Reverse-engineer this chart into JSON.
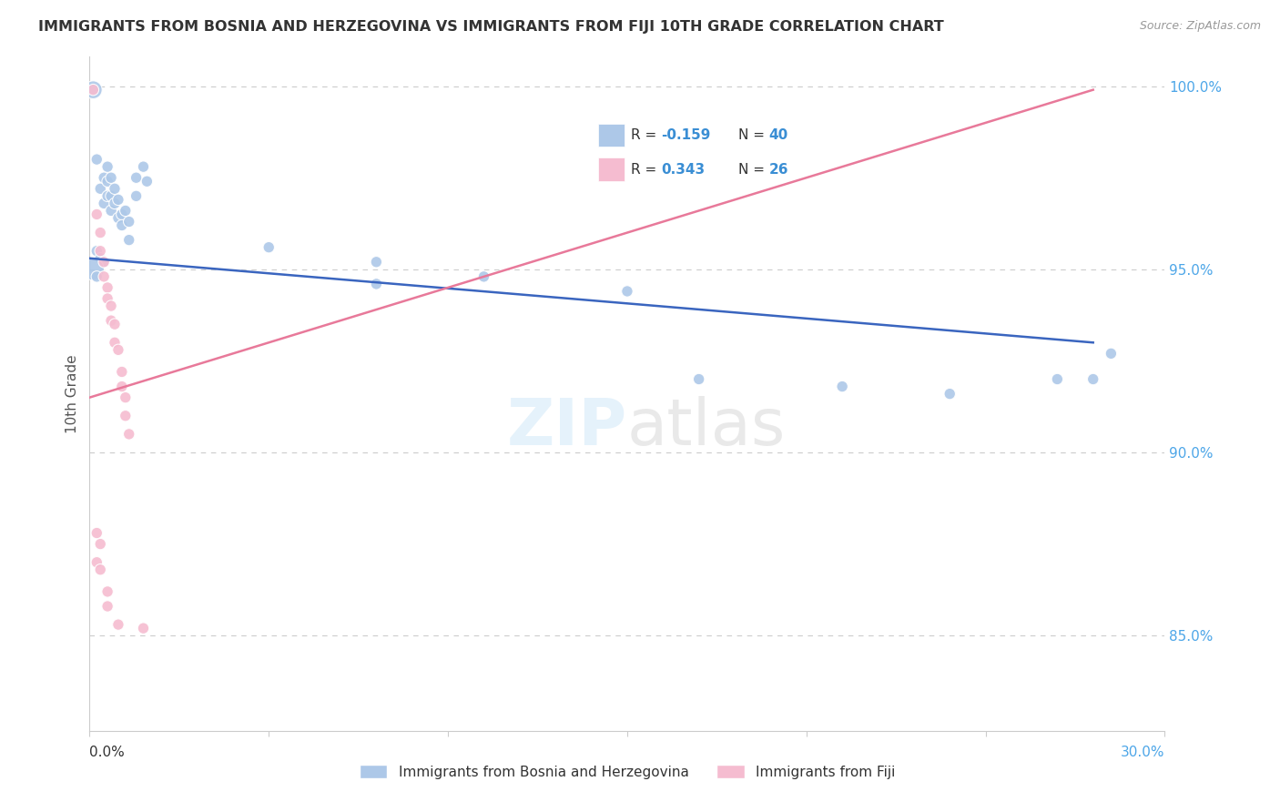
{
  "title": "IMMIGRANTS FROM BOSNIA AND HERZEGOVINA VS IMMIGRANTS FROM FIJI 10TH GRADE CORRELATION CHART",
  "source": "Source: ZipAtlas.com",
  "ylabel": "10th Grade",
  "blue_label": "Immigrants from Bosnia and Herzegovina",
  "pink_label": "Immigrants from Fiji",
  "blue_R": -0.159,
  "blue_N": 40,
  "pink_R": 0.343,
  "pink_N": 26,
  "blue_color": "#adc8e8",
  "pink_color": "#f5bcd0",
  "blue_line_color": "#3a65bf",
  "pink_line_color": "#e8799a",
  "watermark": "ZIPatlas",
  "x_range": [
    0.0,
    0.3
  ],
  "y_range": [
    0.824,
    1.008
  ],
  "y_ticks": [
    0.85,
    0.9,
    0.95,
    1.0
  ],
  "y_tick_labels": [
    "85.0%",
    "90.0%",
    "95.0%",
    "100.0%"
  ],
  "blue_line_x": [
    0.0,
    0.28
  ],
  "blue_line_y": [
    0.953,
    0.93
  ],
  "pink_line_x": [
    0.0,
    0.28
  ],
  "pink_line_y": [
    0.915,
    0.999
  ],
  "blue_points": [
    [
      0.001,
      0.999
    ],
    [
      0.002,
      0.98
    ],
    [
      0.003,
      0.972
    ],
    [
      0.004,
      0.975
    ],
    [
      0.004,
      0.968
    ],
    [
      0.005,
      0.978
    ],
    [
      0.005,
      0.974
    ],
    [
      0.005,
      0.97
    ],
    [
      0.006,
      0.975
    ],
    [
      0.006,
      0.97
    ],
    [
      0.006,
      0.966
    ],
    [
      0.007,
      0.972
    ],
    [
      0.007,
      0.968
    ],
    [
      0.008,
      0.969
    ],
    [
      0.008,
      0.964
    ],
    [
      0.009,
      0.965
    ],
    [
      0.009,
      0.962
    ],
    [
      0.01,
      0.966
    ],
    [
      0.011,
      0.963
    ],
    [
      0.011,
      0.958
    ],
    [
      0.013,
      0.975
    ],
    [
      0.013,
      0.97
    ],
    [
      0.015,
      0.978
    ],
    [
      0.016,
      0.974
    ],
    [
      0.002,
      0.955
    ],
    [
      0.003,
      0.953
    ],
    [
      0.004,
      0.952
    ],
    [
      0.001,
      0.95
    ],
    [
      0.002,
      0.948
    ],
    [
      0.05,
      0.956
    ],
    [
      0.08,
      0.952
    ],
    [
      0.08,
      0.946
    ],
    [
      0.11,
      0.948
    ],
    [
      0.15,
      0.944
    ],
    [
      0.17,
      0.92
    ],
    [
      0.21,
      0.918
    ],
    [
      0.24,
      0.916
    ],
    [
      0.27,
      0.92
    ],
    [
      0.28,
      0.92
    ],
    [
      0.285,
      0.927
    ]
  ],
  "blue_sizes": [
    200,
    80,
    80,
    80,
    80,
    80,
    80,
    80,
    80,
    80,
    80,
    80,
    80,
    80,
    80,
    80,
    80,
    80,
    80,
    80,
    80,
    80,
    80,
    80,
    80,
    80,
    80,
    300,
    80,
    80,
    80,
    80,
    80,
    80,
    80,
    80,
    80,
    80,
    80,
    80
  ],
  "pink_points": [
    [
      0.001,
      0.999
    ],
    [
      0.002,
      0.965
    ],
    [
      0.003,
      0.96
    ],
    [
      0.003,
      0.955
    ],
    [
      0.004,
      0.952
    ],
    [
      0.004,
      0.948
    ],
    [
      0.005,
      0.945
    ],
    [
      0.005,
      0.942
    ],
    [
      0.006,
      0.94
    ],
    [
      0.006,
      0.936
    ],
    [
      0.007,
      0.935
    ],
    [
      0.007,
      0.93
    ],
    [
      0.008,
      0.928
    ],
    [
      0.009,
      0.922
    ],
    [
      0.009,
      0.918
    ],
    [
      0.01,
      0.915
    ],
    [
      0.01,
      0.91
    ],
    [
      0.011,
      0.905
    ],
    [
      0.002,
      0.878
    ],
    [
      0.003,
      0.875
    ],
    [
      0.002,
      0.87
    ],
    [
      0.003,
      0.868
    ],
    [
      0.005,
      0.862
    ],
    [
      0.005,
      0.858
    ],
    [
      0.008,
      0.853
    ],
    [
      0.015,
      0.852
    ]
  ],
  "pink_sizes": [
    80,
    80,
    80,
    80,
    80,
    80,
    80,
    80,
    80,
    80,
    80,
    80,
    80,
    80,
    80,
    80,
    80,
    80,
    80,
    80,
    80,
    80,
    80,
    80,
    80,
    80
  ]
}
